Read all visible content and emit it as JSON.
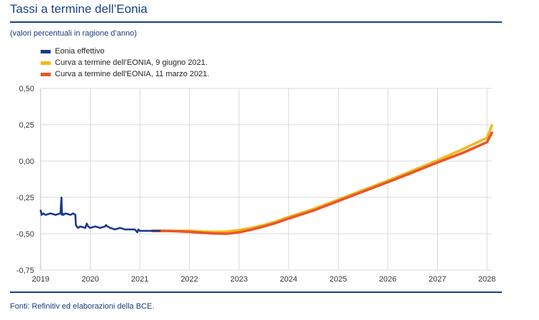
{
  "header": {
    "title": "Tassi a termine dell’Eonia"
  },
  "subtitle": "(valori percentuali in ragione d’anno)",
  "source": "Fonti: Refinitiv ed elaborazioni della BCE.",
  "colors": {
    "brand": "#17408b",
    "eonia": "#1a3a8c",
    "june": "#f2b91d",
    "march": "#e8562a",
    "grid": "#d9d9d9"
  },
  "chart_data": {
    "type": "line",
    "title": "Tassi a termine dell’Eonia",
    "subtitle": "(valori percentuali in ragione d’anno)",
    "xlabel": "",
    "ylabel": "",
    "xlim": [
      2019,
      2028.1
    ],
    "ylim": [
      -0.75,
      0.5
    ],
    "grid": true,
    "legend_position": "top-left",
    "x_ticks": [
      "2019",
      "2020",
      "2021",
      "2022",
      "2023",
      "2024",
      "2025",
      "2026",
      "2027",
      "2028"
    ],
    "x_tick_values": [
      2019,
      2020,
      2021,
      2022,
      2023,
      2024,
      2025,
      2026,
      2027,
      2028
    ],
    "y_ticks": [
      "0,50",
      "0,25",
      "0,00",
      "-0,25",
      "-0,50",
      "-0,75"
    ],
    "y_tick_values": [
      0.5,
      0.25,
      0.0,
      -0.25,
      -0.5,
      -0.75
    ],
    "series": [
      {
        "name": "Eonia effettivo",
        "color": "#1a3a8c",
        "x": [
          2019.0,
          2019.02,
          2019.05,
          2019.1,
          2019.2,
          2019.3,
          2019.4,
          2019.42,
          2019.43,
          2019.44,
          2019.46,
          2019.5,
          2019.6,
          2019.66,
          2019.7,
          2019.71,
          2019.75,
          2019.8,
          2019.9,
          2019.93,
          2019.96,
          2020.0,
          2020.1,
          2020.2,
          2020.3,
          2020.32,
          2020.35,
          2020.4,
          2020.5,
          2020.6,
          2020.7,
          2020.8,
          2020.9,
          2020.95,
          2020.97,
          2021.0,
          2021.1,
          2021.2,
          2021.3,
          2021.4
        ],
        "y": [
          -0.34,
          -0.37,
          -0.36,
          -0.37,
          -0.36,
          -0.37,
          -0.36,
          -0.25,
          -0.37,
          -0.36,
          -0.37,
          -0.36,
          -0.37,
          -0.36,
          -0.37,
          -0.44,
          -0.46,
          -0.45,
          -0.46,
          -0.43,
          -0.45,
          -0.46,
          -0.45,
          -0.46,
          -0.45,
          -0.44,
          -0.45,
          -0.46,
          -0.47,
          -0.46,
          -0.47,
          -0.47,
          -0.47,
          -0.49,
          -0.47,
          -0.48,
          -0.48,
          -0.48,
          -0.48,
          -0.48
        ]
      },
      {
        "name": "Curva a termine dell’EONIA, 9 giugno 2021.",
        "color": "#f2b91d",
        "x": [
          2021.25,
          2021.5,
          2021.75,
          2022.0,
          2022.25,
          2022.5,
          2022.75,
          2023.0,
          2023.25,
          2023.5,
          2023.75,
          2024.0,
          2024.5,
          2025.0,
          2025.5,
          2026.0,
          2026.5,
          2027.0,
          2027.5,
          2028.0,
          2028.1
        ],
        "y": [
          -0.48,
          -0.48,
          -0.48,
          -0.48,
          -0.485,
          -0.487,
          -0.485,
          -0.475,
          -0.46,
          -0.44,
          -0.415,
          -0.385,
          -0.33,
          -0.265,
          -0.2,
          -0.135,
          -0.065,
          0.005,
          0.08,
          0.16,
          0.245
        ]
      },
      {
        "name": "Curva a termine dell'EONIA, 11 marzo 2021.",
        "color": "#e8562a",
        "x": [
          2021.25,
          2021.5,
          2021.75,
          2022.0,
          2022.25,
          2022.5,
          2022.75,
          2023.0,
          2023.25,
          2023.5,
          2023.75,
          2024.0,
          2024.5,
          2025.0,
          2025.5,
          2026.0,
          2026.5,
          2027.0,
          2027.5,
          2028.0,
          2028.1
        ],
        "y": [
          -0.48,
          -0.48,
          -0.483,
          -0.487,
          -0.493,
          -0.498,
          -0.5,
          -0.49,
          -0.472,
          -0.45,
          -0.425,
          -0.395,
          -0.34,
          -0.275,
          -0.21,
          -0.145,
          -0.078,
          -0.01,
          0.055,
          0.13,
          0.195
        ]
      }
    ]
  }
}
